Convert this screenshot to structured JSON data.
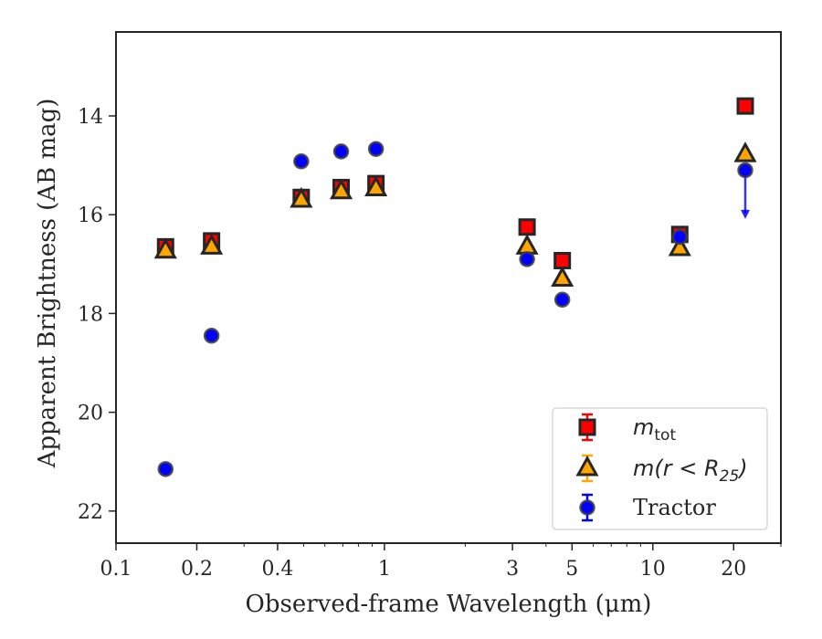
{
  "chart_data": {
    "type": "scatter",
    "title": "",
    "xlabel": "Observed-frame Wavelength (μm)",
    "ylabel": "Apparent Brightness (AB mag)",
    "xscale": "log",
    "yaxis_inverted": true,
    "xlim": [
      0.1,
      30
    ],
    "ylim": [
      22.65,
      12.3
    ],
    "xticks": [
      0.1,
      0.2,
      0.4,
      1,
      3,
      5,
      10,
      20
    ],
    "xtick_labels": [
      "0.1",
      "0.2",
      "0.4",
      "1",
      "3",
      "5",
      "10",
      "20"
    ],
    "yticks": [
      14,
      16,
      18,
      20,
      22
    ],
    "ytick_labels": [
      "14",
      "16",
      "18",
      "20",
      "22"
    ],
    "grid": false,
    "legend_position": "lower-right",
    "series": [
      {
        "name": "m_tot",
        "label_main": "m",
        "label_sub": "tot",
        "marker": "square",
        "color": "#ff0000",
        "edge_color": "#262626",
        "errorbar_color": "#ff0000",
        "points": [
          {
            "x": 0.153,
            "y": 16.65
          },
          {
            "x": 0.227,
            "y": 16.53
          },
          {
            "x": 0.49,
            "y": 15.65
          },
          {
            "x": 0.69,
            "y": 15.45
          },
          {
            "x": 0.93,
            "y": 15.37
          },
          {
            "x": 3.4,
            "y": 16.25
          },
          {
            "x": 4.6,
            "y": 16.93
          },
          {
            "x": 12.6,
            "y": 16.4
          },
          {
            "x": 22.1,
            "y": 13.8
          }
        ]
      },
      {
        "name": "m(r<R25)",
        "label_main": "m(r < R",
        "label_sub": "25",
        "label_tail": ")",
        "marker": "triangle",
        "color": "#ffa500",
        "edge_color": "#262626",
        "errorbar_color": "#ffa500",
        "points": [
          {
            "x": 0.153,
            "y": 16.73
          },
          {
            "x": 0.227,
            "y": 16.65
          },
          {
            "x": 0.49,
            "y": 15.7
          },
          {
            "x": 0.69,
            "y": 15.53
          },
          {
            "x": 0.93,
            "y": 15.47
          },
          {
            "x": 3.4,
            "y": 16.65
          },
          {
            "x": 4.6,
            "y": 17.3
          },
          {
            "x": 12.6,
            "y": 16.68
          },
          {
            "x": 22.1,
            "y": 14.78
          }
        ]
      },
      {
        "name": "Tractor",
        "marker": "circle",
        "color": "#0000ff",
        "edge_color": "#404040",
        "errorbar_color": "#0000ff",
        "points": [
          {
            "x": 0.153,
            "y": 21.15
          },
          {
            "x": 0.227,
            "y": 18.45
          },
          {
            "x": 0.49,
            "y": 14.92
          },
          {
            "x": 0.69,
            "y": 14.72
          },
          {
            "x": 0.93,
            "y": 14.67
          },
          {
            "x": 3.4,
            "y": 16.9
          },
          {
            "x": 4.6,
            "y": 17.72
          },
          {
            "x": 12.6,
            "y": 16.45
          },
          {
            "x": 22.1,
            "y": 15.1,
            "upper_limit": true,
            "limit_to": 16.05
          }
        ]
      }
    ]
  }
}
